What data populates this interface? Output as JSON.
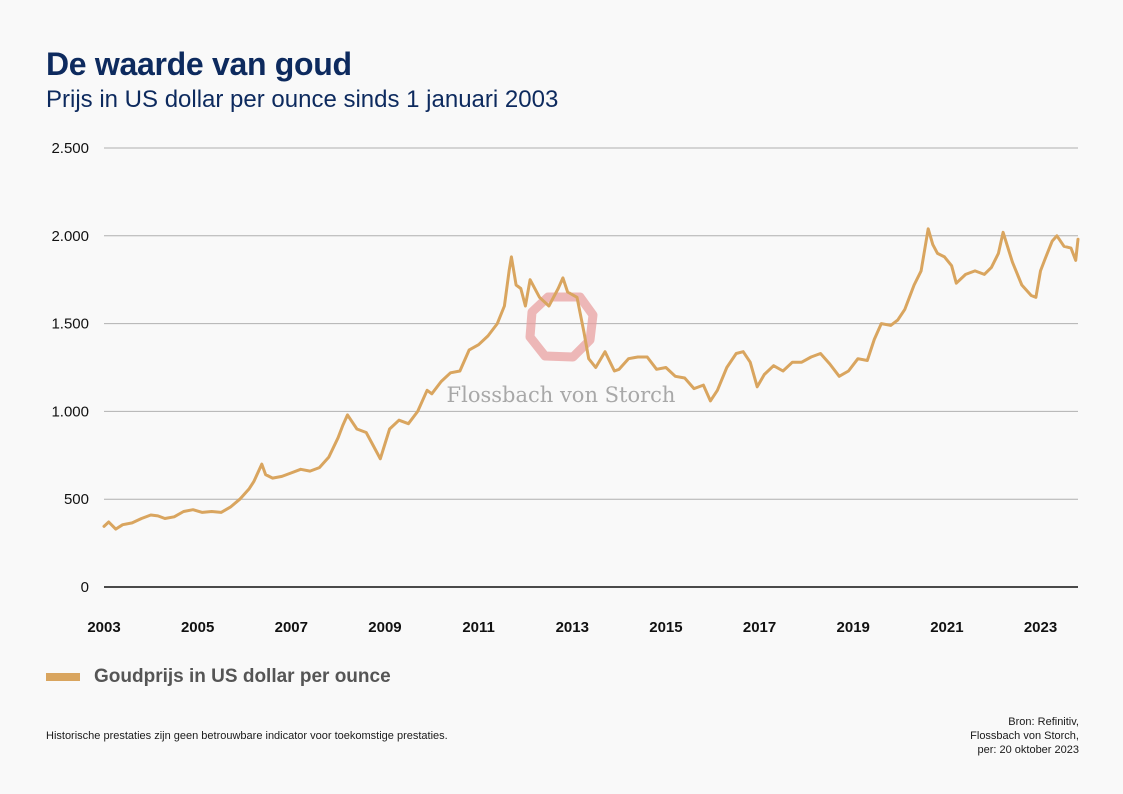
{
  "title": "De waarde van goud",
  "subtitle": "Prijs in US dollar per ounce sinds 1 januari 2003",
  "watermark": "Flossbach von Storch",
  "legend": {
    "label": "Goudprijs in US dollar per ounce",
    "color": "#d9a55f"
  },
  "disclaimer": "Historische prestaties zijn geen betrouwbare indicator voor toekomstige prestaties.",
  "source": {
    "line1": "Bron: Refinitiv,",
    "line2": "Flossbach von Storch,",
    "line3": "per: 20 oktober 2023"
  },
  "colors": {
    "title": "#0d2a5e",
    "series": "#d9a55f",
    "watermark_logo": "#e8a0a0",
    "gridline": "#b0b0b0"
  },
  "chart_data": {
    "type": "line",
    "title": "De waarde van goud",
    "subtitle": "Prijs in US dollar per ounce sinds 1 januari 2003",
    "xlabel": "",
    "ylabel": "",
    "xlim": [
      2003.0,
      2023.8
    ],
    "ylim": [
      0,
      2500
    ],
    "grid": true,
    "legend_position": "bottom-left",
    "x_ticks": [
      2003,
      2005,
      2007,
      2009,
      2011,
      2013,
      2015,
      2017,
      2019,
      2021,
      2023
    ],
    "x_tick_labels": [
      "2003",
      "2005",
      "2007",
      "2009",
      "2011",
      "2013",
      "2015",
      "2017",
      "2019",
      "2021",
      "2023"
    ],
    "y_ticks": [
      0,
      500,
      1000,
      1500,
      2000,
      2500
    ],
    "y_tick_labels": [
      "0",
      "500",
      "1.000",
      "1.500",
      "2.000",
      "2.500"
    ],
    "series": [
      {
        "name": "Goudprijs in US dollar per ounce",
        "color": "#d9a55f",
        "x": [
          2003.0,
          2003.1,
          2003.25,
          2003.4,
          2003.6,
          2003.8,
          2004.0,
          2004.15,
          2004.3,
          2004.5,
          2004.7,
          2004.9,
          2005.1,
          2005.3,
          2005.5,
          2005.7,
          2005.9,
          2006.1,
          2006.2,
          2006.37,
          2006.45,
          2006.6,
          2006.8,
          2007.0,
          2007.2,
          2007.4,
          2007.6,
          2007.8,
          2008.0,
          2008.1,
          2008.2,
          2008.4,
          2008.6,
          2008.8,
          2008.9,
          2009.1,
          2009.3,
          2009.5,
          2009.7,
          2009.9,
          2010.0,
          2010.2,
          2010.4,
          2010.6,
          2010.8,
          2011.0,
          2011.2,
          2011.4,
          2011.55,
          2011.65,
          2011.7,
          2011.8,
          2011.9,
          2012.0,
          2012.1,
          2012.3,
          2012.5,
          2012.7,
          2012.8,
          2012.9,
          2013.1,
          2013.25,
          2013.35,
          2013.5,
          2013.7,
          2013.9,
          2014.0,
          2014.2,
          2014.4,
          2014.6,
          2014.8,
          2015.0,
          2015.2,
          2015.4,
          2015.6,
          2015.8,
          2015.95,
          2016.1,
          2016.3,
          2016.5,
          2016.65,
          2016.8,
          2016.95,
          2017.1,
          2017.3,
          2017.5,
          2017.7,
          2017.9,
          2018.1,
          2018.3,
          2018.5,
          2018.7,
          2018.9,
          2019.1,
          2019.3,
          2019.45,
          2019.6,
          2019.8,
          2019.95,
          2020.1,
          2020.2,
          2020.3,
          2020.45,
          2020.6,
          2020.7,
          2020.8,
          2020.95,
          2021.1,
          2021.2,
          2021.4,
          2021.6,
          2021.8,
          2021.95,
          2022.1,
          2022.2,
          2022.4,
          2022.6,
          2022.8,
          2022.9,
          2023.0,
          2023.1,
          2023.25,
          2023.35,
          2023.5,
          2023.65,
          2023.75,
          2023.8
        ],
        "y": [
          345,
          370,
          330,
          355,
          365,
          390,
          410,
          405,
          390,
          400,
          430,
          440,
          425,
          430,
          425,
          455,
          500,
          560,
          600,
          700,
          640,
          620,
          630,
          650,
          670,
          660,
          680,
          740,
          850,
          920,
          980,
          900,
          880,
          780,
          730,
          900,
          950,
          930,
          1000,
          1120,
          1100,
          1170,
          1220,
          1230,
          1350,
          1380,
          1430,
          1500,
          1600,
          1800,
          1880,
          1720,
          1700,
          1600,
          1750,
          1650,
          1600,
          1700,
          1760,
          1680,
          1650,
          1450,
          1300,
          1250,
          1340,
          1230,
          1240,
          1300,
          1310,
          1310,
          1240,
          1250,
          1200,
          1190,
          1130,
          1150,
          1060,
          1120,
          1250,
          1330,
          1340,
          1280,
          1140,
          1210,
          1260,
          1230,
          1280,
          1280,
          1310,
          1330,
          1270,
          1200,
          1230,
          1300,
          1290,
          1410,
          1500,
          1490,
          1520,
          1580,
          1650,
          1720,
          1800,
          2040,
          1950,
          1900,
          1880,
          1830,
          1730,
          1780,
          1800,
          1780,
          1820,
          1900,
          2020,
          1850,
          1720,
          1660,
          1650,
          1800,
          1870,
          1970,
          2000,
          1940,
          1930,
          1860,
          1980
        ]
      }
    ]
  }
}
